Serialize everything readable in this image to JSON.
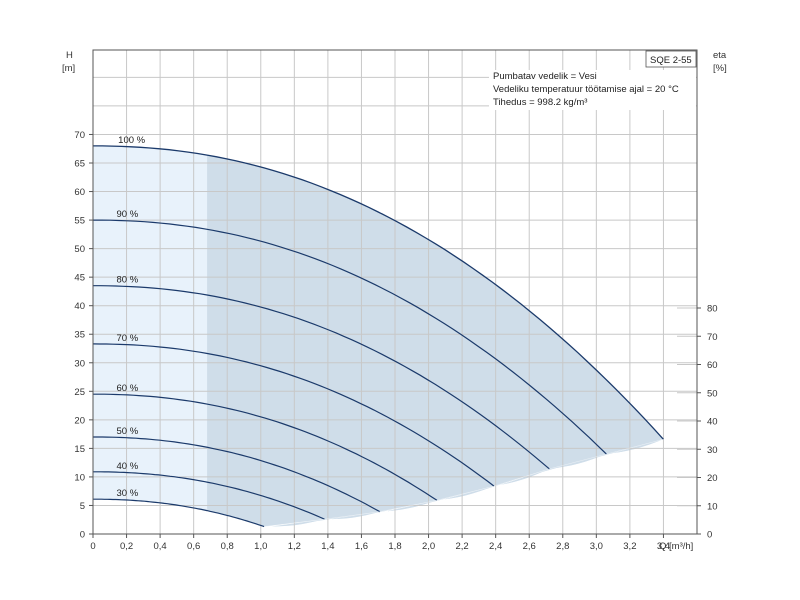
{
  "chart_data": {
    "type": "line",
    "model_badge": "SQE 2-55",
    "info_lines": [
      "Pumbatav vedelik = Vesi",
      "Vedeliku temperatuur töötamise ajal = 20 °C",
      "Tihedus = 998.2 kg/m³"
    ],
    "y_axis_left": {
      "label_line1": "H",
      "label_line2": "[m]",
      "range": [
        0,
        70
      ],
      "ticks": [
        0,
        5,
        10,
        15,
        20,
        25,
        30,
        35,
        40,
        45,
        50,
        55,
        60,
        65,
        70
      ]
    },
    "y_axis_right": {
      "label_line1": "eta",
      "label_line2": "[%]",
      "range": [
        0,
        80
      ],
      "ticks": [
        0,
        10,
        20,
        30,
        40,
        50,
        60,
        70,
        80
      ]
    },
    "x_axis": {
      "label": "Q [m³/h]",
      "range": [
        0,
        3.6
      ],
      "ticks": [
        0,
        0.2,
        0.4,
        0.6,
        0.8,
        1.0,
        1.2,
        1.4,
        1.6,
        1.8,
        2.0,
        2.2,
        2.4,
        2.6,
        2.8,
        3.0,
        3.2,
        3.4
      ],
      "tick_labels": [
        "0",
        "0,2",
        "0,4",
        "0,6",
        "0,8",
        "1,0",
        "1,2",
        "1,4",
        "1,6",
        "1,8",
        "2,0",
        "2,2",
        "2,4",
        "2,6",
        "2,8",
        "3,0",
        "3,2",
        "3,4"
      ]
    },
    "grid": true,
    "operating_range": {
      "q_min": 0.68,
      "lower_boundary": [
        [
          1.02,
          1.3
        ],
        [
          1.38,
          2.6
        ],
        [
          1.71,
          3.9
        ],
        [
          2.05,
          5.9
        ],
        [
          2.39,
          8.4
        ],
        [
          2.72,
          11.4
        ],
        [
          3.06,
          14.0
        ],
        [
          3.4,
          16.6
        ]
      ]
    },
    "series": [
      {
        "name": "100 %",
        "shutoff_head": 68.0,
        "end_q": 3.4,
        "end_head": 16.6,
        "exp": 2.15
      },
      {
        "name": "90 %",
        "shutoff_head": 55.0,
        "end_q": 3.06,
        "end_head": 14.0,
        "exp": 2.15
      },
      {
        "name": "80 %",
        "shutoff_head": 43.5,
        "end_q": 2.72,
        "end_head": 11.4,
        "exp": 2.15
      },
      {
        "name": "70 %",
        "shutoff_head": 33.3,
        "end_q": 2.39,
        "end_head": 8.4,
        "exp": 2.15
      },
      {
        "name": "60 %",
        "shutoff_head": 24.5,
        "end_q": 2.05,
        "end_head": 5.9,
        "exp": 2.15
      },
      {
        "name": "50 %",
        "shutoff_head": 17.0,
        "end_q": 1.71,
        "end_head": 3.9,
        "exp": 2.15
      },
      {
        "name": "40 %",
        "shutoff_head": 10.9,
        "end_q": 1.38,
        "end_head": 2.6,
        "exp": 2.15
      },
      {
        "name": "30 %",
        "shutoff_head": 6.1,
        "end_q": 1.02,
        "end_head": 1.3,
        "exp": 2.15
      }
    ],
    "colors": {
      "curve": "#1b3a6b",
      "light_fill": "#e8f2fb",
      "dark_fill": "#cfdde9",
      "grid": "#c8c8c8",
      "frame": "#555555"
    }
  }
}
